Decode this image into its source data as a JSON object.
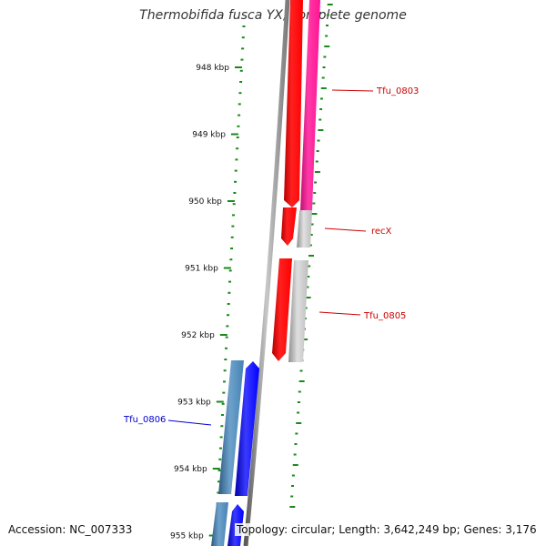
{
  "title": "Thermobifida fusca YX, complete genome",
  "footer": {
    "accession": "Accession: NC_007333",
    "topology": "Topology: circular; Length: 3,642,249 bp; Genes: 3,176"
  },
  "scale": {
    "labels": [
      "948 kbp",
      "949 kbp",
      "950 kbp",
      "951 kbp",
      "952 kbp",
      "953 kbp",
      "954 kbp",
      "955 kbp"
    ]
  },
  "genes": [
    {
      "name": "",
      "strand": "forward",
      "color": "#ff0000",
      "label_color": "#cc0000"
    },
    {
      "name": "Tfu_0803",
      "strand": "reverse",
      "color": "#ff1493",
      "label_color": "#cc0000"
    },
    {
      "name": "",
      "strand": "forward",
      "color": "#ff0000",
      "label_color": "#cc0000"
    },
    {
      "name": "recX",
      "strand": "reverse",
      "color": "#b4b4b4",
      "label_color": "#cc0000"
    },
    {
      "name": "",
      "strand": "forward",
      "color": "#ff0000",
      "label_color": "#cc0000"
    },
    {
      "name": "Tfu_0805",
      "strand": "reverse",
      "color": "#c0c0c0",
      "label_color": "#cc0000"
    },
    {
      "name": "Tfu_0806",
      "strand": "forward",
      "color": "#4682b4",
      "label_color": "#0000cc"
    },
    {
      "name": "",
      "strand": "reverse",
      "color": "#0000ff",
      "label_color": "#0000cc"
    },
    {
      "name": "",
      "strand": "forward",
      "color": "#4682b4",
      "label_color": "#0000cc"
    },
    {
      "name": "",
      "strand": "reverse",
      "color": "#0000ff",
      "label_color": "#0000cc"
    }
  ],
  "colors": {
    "backbone": "#808080",
    "tick_green": "#1a8a1a",
    "label_red": "#cc0000",
    "label_blue": "#0000cc"
  }
}
